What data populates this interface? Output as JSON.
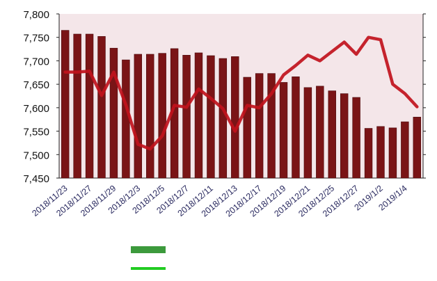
{
  "chart_data": {
    "type": "bar",
    "title": "",
    "xlabel": "",
    "ylabel": "",
    "ylim": [
      7450,
      7800
    ],
    "y_ticks": [
      "7,450",
      "7,500",
      "7,550",
      "7,600",
      "7,650",
      "7,700",
      "7,750",
      "7,800"
    ],
    "x_tick_labels": [
      "2018/11/23",
      "2018/11/27",
      "2018/11/29",
      "2018/12/3",
      "2018/12/5",
      "2018/12/7",
      "2018/12/11",
      "2018/12/13",
      "2018/12/17",
      "2018/12/19",
      "2018/12/21",
      "2018/12/25",
      "2018/12/27",
      "2019/1/2",
      "2019/1/4"
    ],
    "categories": [
      "2018/11/23",
      "2018/11/26",
      "2018/11/27",
      "2018/11/28",
      "2018/11/29",
      "2018/11/30",
      "2018/12/3",
      "2018/12/4",
      "2018/12/5",
      "2018/12/6",
      "2018/12/7",
      "2018/12/10",
      "2018/12/11",
      "2018/12/12",
      "2018/12/13",
      "2018/12/14",
      "2018/12/17",
      "2018/12/18",
      "2018/12/19",
      "2018/12/20",
      "2018/12/21",
      "2018/12/24",
      "2018/12/25",
      "2018/12/26",
      "2018/12/27",
      "2018/12/28",
      "2019/1/2",
      "2019/1/3",
      "2019/1/4",
      "2019/1/7"
    ],
    "series": [
      {
        "values": [
          7765,
          7757,
          7757,
          7752,
          7727,
          7702,
          7714,
          7714,
          7716,
          7726,
          7712,
          7717,
          7711,
          7705,
          7709,
          7665,
          7673,
          7673,
          7654,
          7666,
          7643,
          7646,
          7636,
          7630,
          7622,
          7556,
          7560,
          7557,
          7570,
          7580
        ],
        "color": "#7a1416"
      },
      {
        "values": [
          7676,
          7676,
          7678,
          7626,
          7676,
          7606,
          7522,
          7512,
          7540,
          7605,
          7601,
          7640,
          7620,
          7598,
          7550,
          7605,
          7600,
          7630,
          7670,
          7690,
          7712,
          7700,
          7720,
          7740,
          7714,
          7750,
          7745,
          7650,
          7630,
          7602
        ],
        "color": "#c0121c"
      }
    ],
    "grid": false,
    "legend": {
      "position": "bottom",
      "colors": [
        "#3c9a3c",
        "#22cc22"
      ]
    }
  }
}
